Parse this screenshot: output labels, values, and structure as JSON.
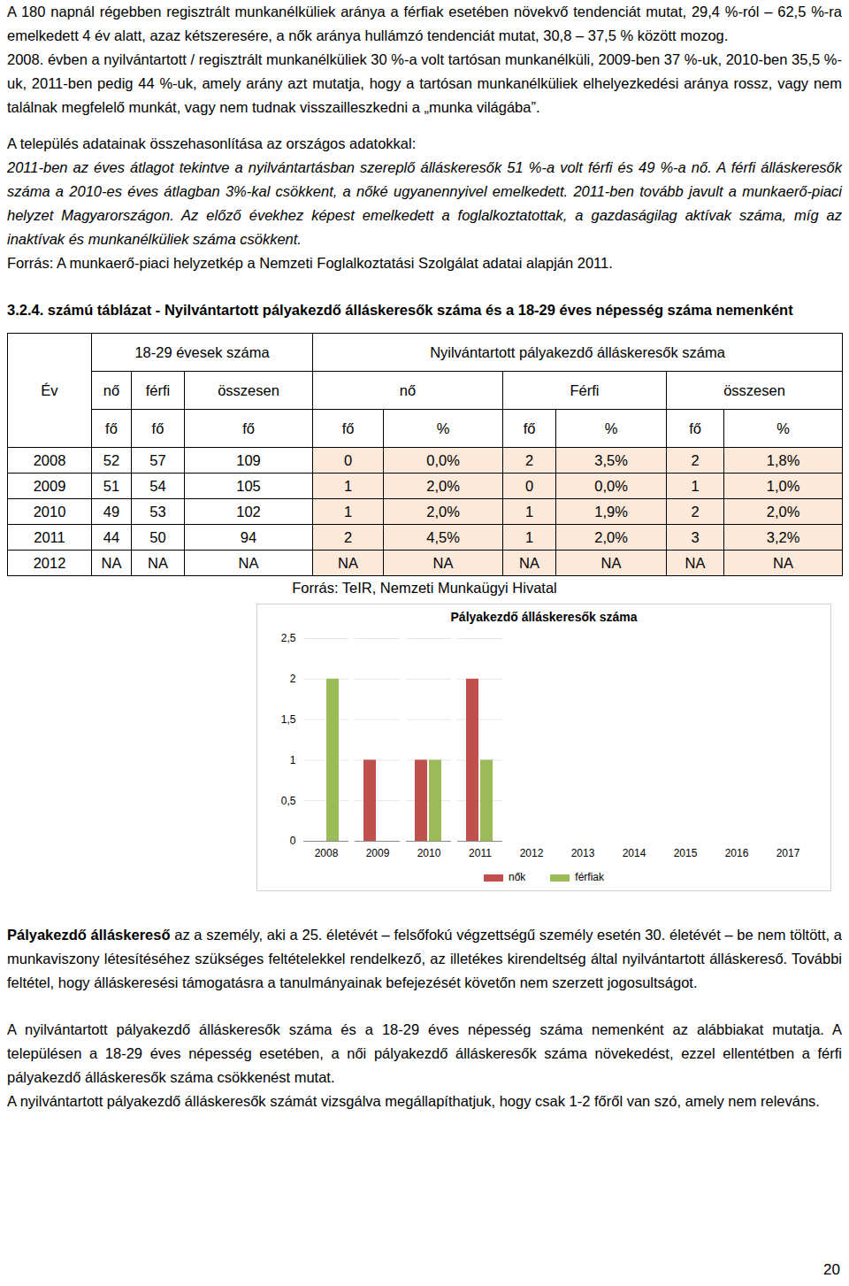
{
  "document": {
    "paragraphs_top": [
      [
        {
          "text": "A 180 napnál régebben regisztrált munkanélküliek aránya a férfiak esetében növekvő tendenciát mutat, 29,4 %-ról – 62,5 %-ra emelkedett 4 év alatt, azaz kétszeresére, a nők aránya hullámzó tendenciát mutat, 30,8 – 37,5 % között mozog."
        }
      ],
      [
        {
          "text": "2008. évben a nyilvántartott / regisztrált munkanélküliek 30 %-a volt tartósan munkanélküli, 2009-ben 37 %-uk, 2010-ben 35,5 %-uk, 2011-ben pedig 44 %-uk, amely arány azt mutatja, hogy a tartósan munkanélküliek elhelyezkedési aránya rossz, vagy nem találnak megfelelő munkát, vagy nem tudnak visszailleszkedni a „munka világába”."
        }
      ]
    ],
    "comparison": [
      [
        {
          "text": "A település adatainak összehasonlítása az országos adatokkal:"
        }
      ],
      [
        {
          "text": "2011-ben az éves átlagot tekintve a nyilvántartásban szereplő álláskeresők 51 %-a volt férfi és 49 %-a nő. A férfi álláskeresők száma a 2010-es éves átlagban 3%-kal csökkent, a nőké ugyanennyivel emelkedett. 2011-ben tovább javult a munkaerő-piaci helyzet Magyarországon. Az előző évekhez képest emelkedett a foglalkoztatottak, a gazdaságilag aktívak száma, míg az inaktívak és munkanélküliek száma csökkent.",
          "italic": true
        }
      ],
      [
        {
          "text": "Forrás: A munkaerő-piaci helyzetkép a Nemzeti Foglalkoztatási Szolgálat adatai alapján 2011."
        }
      ]
    ],
    "table": {
      "title": "3.2.4. számú táblázat - Nyilvántartott pályakezdő álláskeresők száma és a 18-29 éves népesség száma nemenként",
      "year_header": "Év",
      "group_headers": [
        "18-29 évesek száma",
        "Nyilvántartott pályakezdő álláskeresők száma"
      ],
      "sub_headers_left": [
        "nő",
        "férfi",
        "összesen"
      ],
      "sub_headers_right": [
        "nő",
        "Férfi",
        "összesen"
      ],
      "unit_row": [
        "fő",
        "fő",
        "fő",
        "fő",
        "%",
        "fő",
        "%",
        "fő",
        "%"
      ],
      "rows": [
        [
          "2008",
          "52",
          "57",
          "109",
          "0",
          "0,0%",
          "2",
          "3,5%",
          "2",
          "1,8%"
        ],
        [
          "2009",
          "51",
          "54",
          "105",
          "1",
          "2,0%",
          "0",
          "0,0%",
          "1",
          "1,0%"
        ],
        [
          "2010",
          "49",
          "53",
          "102",
          "1",
          "2,0%",
          "1",
          "1,9%",
          "2",
          "2,0%"
        ],
        [
          "2011",
          "44",
          "50",
          "94",
          "2",
          "4,5%",
          "1",
          "2,0%",
          "3",
          "3,2%"
        ],
        [
          "2012",
          "NA",
          "NA",
          "NA",
          "NA",
          "NA",
          "NA",
          "NA",
          "NA",
          "NA"
        ]
      ],
      "source": "Forrás: TeIR, Nemzeti Munkaügyi Hivatal"
    },
    "paragraphs_bottom": [
      [
        {
          "text": "Pályakezdő álláskereső",
          "bold": true
        },
        {
          "text": " az a személy, aki a 25. életévét – felsőfokú végzettségű személy esetén 30. életévét – be nem töltött, a munkaviszony létesítéséhez szükséges feltételekkel rendelkező, az illetékes kirendeltség által nyilvántartott álláskereső. További feltétel, hogy álláskeresési támogatásra a tanulmányainak befejezését követőn nem szerzett jogosultságot."
        }
      ],
      [
        {
          "text": "A nyilvántartott pályakezdő álláskeresők száma és a 18-29 éves népesség száma nemenként az alábbiakat mutatja. A településen a 18-29 éves népesség esetében, a női pályakezdő álláskeresők száma növekedést, ezzel ellentétben a férfi pályakezdő álláskeresők száma csökkenést mutat."
        },
        {
          "text": "\nA nyilvántartott pályakezdő álláskeresők számát vizsgálva megállapíthatjuk, hogy csak 1-2 főről van szó, amely nem releváns."
        }
      ]
    ],
    "page_number": "20"
  },
  "chart_data": {
    "type": "bar",
    "title": "Pályakezdő álláskeresők száma",
    "categories": [
      "2008",
      "2009",
      "2010",
      "2011",
      "2012",
      "2013",
      "2014",
      "2015",
      "2016",
      "2017"
    ],
    "series": [
      {
        "name": "nők",
        "color": "#c0504d",
        "values": [
          0,
          1,
          1,
          2,
          null,
          null,
          null,
          null,
          null,
          null
        ]
      },
      {
        "name": "férfiak",
        "color": "#9bbb59",
        "values": [
          2,
          0,
          1,
          1,
          null,
          null,
          null,
          null,
          null,
          null
        ]
      }
    ],
    "ylim": [
      0,
      2.5
    ],
    "yticks": [
      0,
      {
        "value": 0.5,
        "label": "0,5"
      },
      1,
      {
        "value": 1.5,
        "label": "1,5"
      },
      2,
      {
        "value": 2.5,
        "label": "2,5"
      }
    ],
    "grid": true,
    "legend": "bottom"
  }
}
